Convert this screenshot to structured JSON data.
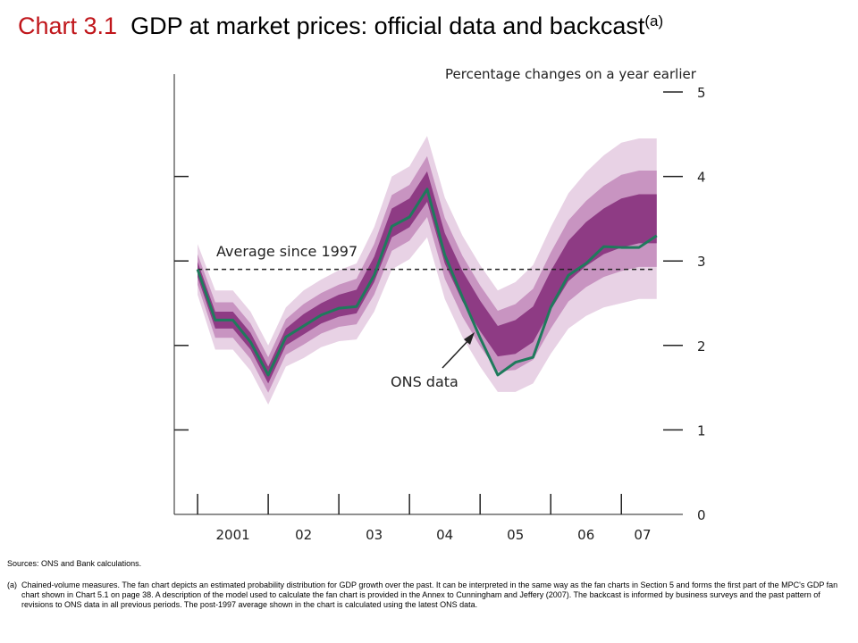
{
  "chart_data": {
    "type": "fan",
    "chart_label": "Chart 3.1",
    "title": "GDP at market prices:  official data and backcast",
    "title_note": "(a)",
    "subtitle": "Percentage changes on a year earlier",
    "xlim": [
      2000.67,
      2007.87
    ],
    "xboundaries": [
      2001,
      2002,
      2003,
      2004,
      2005,
      2006,
      2007
    ],
    "xticks": [
      {
        "value": 2001.5,
        "label": "2001"
      },
      {
        "value": 2002.5,
        "label": "02"
      },
      {
        "value": 2003.5,
        "label": "03"
      },
      {
        "value": 2004.5,
        "label": "04"
      },
      {
        "value": 2005.5,
        "label": "05"
      },
      {
        "value": 2006.5,
        "label": "06"
      },
      {
        "value": 2007.3,
        "label": "07"
      }
    ],
    "ylim": [
      0,
      5
    ],
    "yticks": [
      0,
      1,
      2,
      3,
      4,
      5
    ],
    "x": [
      2001,
      2001.25,
      2001.5,
      2001.75,
      2002,
      2002.25,
      2002.5,
      2002.75,
      2003,
      2003.25,
      2003.5,
      2003.75,
      2004,
      2004.25,
      2004.5,
      2004.75,
      2005,
      2005.25,
      2005.5,
      2005.75,
      2006,
      2006.25,
      2006.5,
      2006.75,
      2007,
      2007.25,
      2007.5
    ],
    "fan": [
      {
        "color": "#e8d2e5",
        "upper": [
          3.2,
          2.65,
          2.65,
          2.4,
          2.0,
          2.45,
          2.65,
          2.78,
          2.89,
          2.97,
          3.4,
          4.0,
          4.12,
          4.48,
          3.75,
          3.3,
          2.95,
          2.65,
          2.75,
          2.95,
          3.4,
          3.8,
          4.05,
          4.25,
          4.4,
          4.45,
          4.45
        ],
        "lower": [
          2.6,
          1.95,
          1.95,
          1.7,
          1.3,
          1.75,
          1.85,
          1.98,
          2.05,
          2.07,
          2.4,
          2.9,
          3.02,
          3.28,
          2.55,
          2.1,
          1.75,
          1.45,
          1.45,
          1.55,
          1.9,
          2.2,
          2.35,
          2.45,
          2.5,
          2.55,
          2.55
        ]
      },
      {
        "color": "#c894c1",
        "upper": [
          3.08,
          2.51,
          2.51,
          2.26,
          1.86,
          2.31,
          2.49,
          2.62,
          2.72,
          2.79,
          3.2,
          3.78,
          3.9,
          4.24,
          3.51,
          3.06,
          2.71,
          2.41,
          2.49,
          2.67,
          3.1,
          3.48,
          3.71,
          3.89,
          4.02,
          4.07,
          4.07
        ],
        "lower": [
          2.72,
          2.09,
          2.09,
          1.84,
          1.44,
          1.89,
          2.01,
          2.14,
          2.22,
          2.25,
          2.6,
          3.12,
          3.24,
          3.52,
          2.79,
          2.34,
          1.99,
          1.69,
          1.71,
          1.83,
          2.2,
          2.52,
          2.69,
          2.81,
          2.88,
          2.93,
          2.93
        ]
      },
      {
        "color": "#8e3b84",
        "upper": [
          2.99,
          2.4,
          2.4,
          2.15,
          1.75,
          2.2,
          2.37,
          2.5,
          2.6,
          2.66,
          3.05,
          3.62,
          3.74,
          4.06,
          3.33,
          2.88,
          2.53,
          2.23,
          2.3,
          2.46,
          2.88,
          3.24,
          3.46,
          3.62,
          3.74,
          3.79,
          3.79
        ],
        "lower": [
          2.81,
          2.2,
          2.2,
          1.95,
          1.55,
          2.0,
          2.13,
          2.26,
          2.34,
          2.38,
          2.75,
          3.28,
          3.4,
          3.7,
          2.97,
          2.52,
          2.17,
          1.87,
          1.9,
          2.04,
          2.42,
          2.76,
          2.94,
          3.08,
          3.16,
          3.21,
          3.21
        ]
      }
    ],
    "series": [
      {
        "name": "ONS data",
        "color": "#1f7a5c",
        "values": [
          2.9,
          2.3,
          2.3,
          2.04,
          1.65,
          2.1,
          2.23,
          2.36,
          2.44,
          2.46,
          2.83,
          3.41,
          3.52,
          3.85,
          3.07,
          2.57,
          2.09,
          1.65,
          1.8,
          1.86,
          2.45,
          2.83,
          2.97,
          3.17,
          3.16,
          3.16,
          3.3
        ]
      }
    ],
    "average": {
      "label": "Average since 1997",
      "value": 2.9
    }
  },
  "sources": "Sources:  ONS and Bank calculations.",
  "footnote_marker": "(a)",
  "footnote": "Chained-volume measures.  The fan chart depicts an estimated probability distribution for GDP growth over the past.  It can be interpreted in the same way as the fan charts in Section 5 and forms the first part of the MPC's GDP fan chart shown in Chart 5.1 on page 38.  A description of the model used to calculate the fan chart is provided in the Annex to Cunningham and Jeffery (2007).  The backcast is informed by business surveys and the past pattern of revisions to ONS data in all previous periods.  The post-1997 average shown in the chart is calculated using the latest ONS data."
}
